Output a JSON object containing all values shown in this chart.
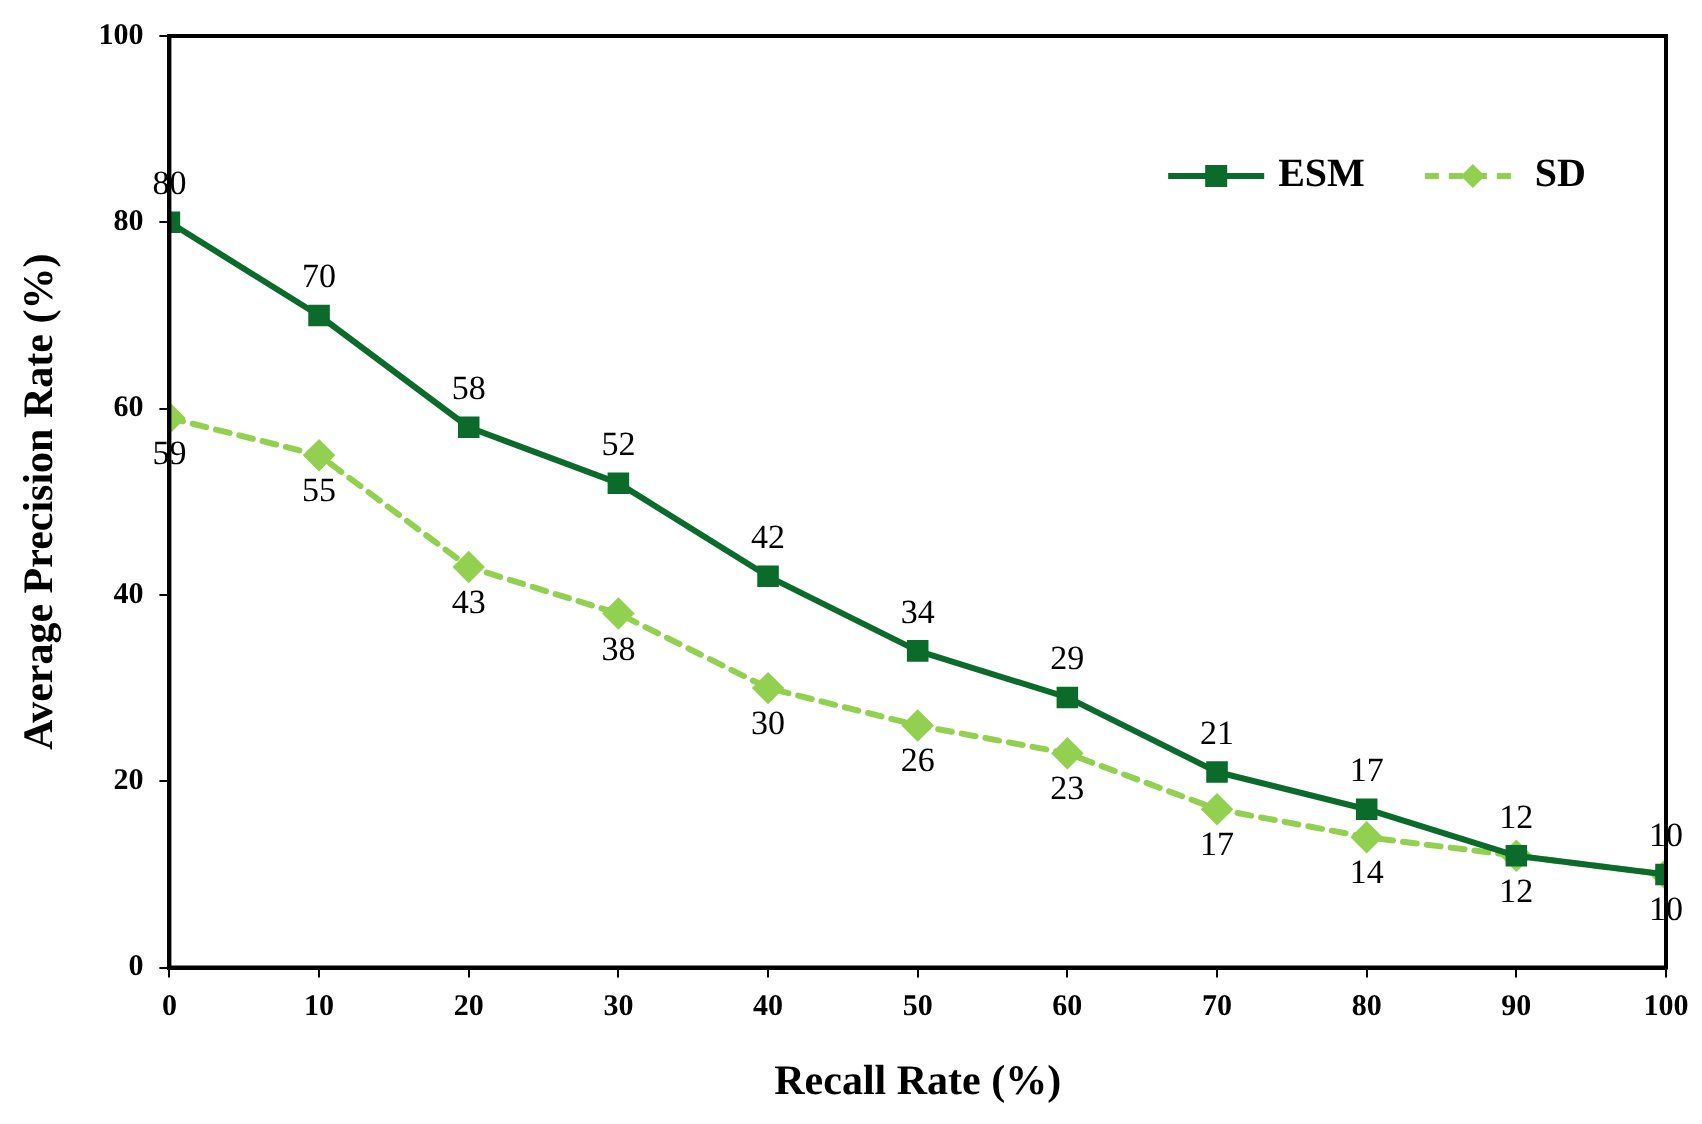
{
  "chart_data": {
    "type": "line",
    "xlabel": "Recall Rate (%)",
    "ylabel": "Average Precision Rate (%)",
    "x": [
      0,
      10,
      20,
      30,
      40,
      50,
      60,
      70,
      80,
      90,
      100
    ],
    "series": [
      {
        "name": "ESM",
        "color": "#0b6b2b",
        "values": [
          80,
          70,
          58,
          52,
          42,
          34,
          29,
          21,
          17,
          12,
          10
        ],
        "marker": "square",
        "line_style": "solid"
      },
      {
        "name": "SD",
        "color": "#92d050",
        "values": [
          59,
          55,
          43,
          38,
          30,
          26,
          23,
          17,
          14,
          12,
          10
        ],
        "marker": "diamond",
        "line_style": "dashed"
      }
    ],
    "xlim": [
      0,
      100
    ],
    "xticks": [
      0,
      10,
      20,
      30,
      40,
      50,
      60,
      70,
      80,
      90,
      100
    ],
    "ylim": [
      0,
      100
    ],
    "yticks": [
      0,
      20,
      40,
      60,
      80,
      100
    ],
    "grid": false,
    "legend": "top right",
    "data_labels": true
  }
}
